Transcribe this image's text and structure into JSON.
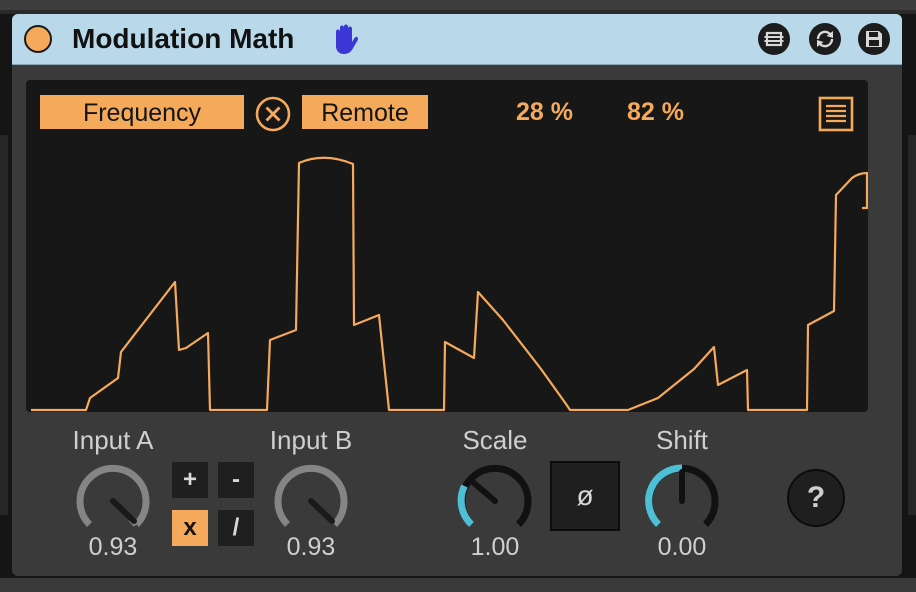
{
  "device": {
    "title": "Modulation Math",
    "icons": [
      "power-toggle",
      "hand-icon",
      "fold-icon",
      "hot-swap-icon",
      "save-icon"
    ]
  },
  "display": {
    "target_label": "Frequency",
    "remote_label": "Remote",
    "percent_a": "28 %",
    "percent_b": "82 %",
    "icons": [
      "clear-icon",
      "menu-icon"
    ]
  },
  "controls": {
    "input_a": {
      "label": "Input A",
      "value": "0.93"
    },
    "input_b": {
      "label": "Input B",
      "value": "0.93"
    },
    "ops": {
      "add": "+",
      "subtract": "-",
      "multiply": "x",
      "divide": "/",
      "active": "multiply"
    },
    "scale": {
      "label": "Scale",
      "value": "1.00"
    },
    "phase": {
      "label": "ø"
    },
    "shift": {
      "label": "Shift",
      "value": "0.00"
    },
    "help": {
      "label": "?"
    }
  },
  "colors": {
    "accent": "#f5a95a",
    "title_bar": "#b9d9ea",
    "knob_arc": "#4ec0d6",
    "hand_icon": "#3b37d6"
  }
}
